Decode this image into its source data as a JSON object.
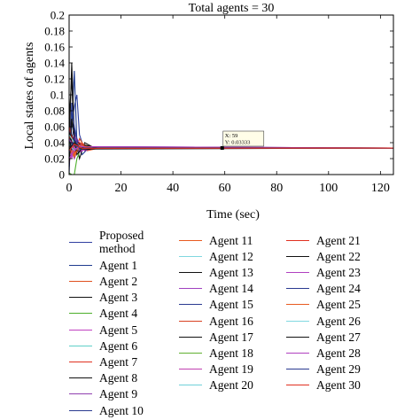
{
  "chart_data": {
    "type": "line",
    "title": "Total agents = 30",
    "xlabel": "Time (sec)",
    "ylabel": "Local states of agents",
    "xlim": [
      0,
      125
    ],
    "ylim": [
      0,
      0.2
    ],
    "xticks": [
      "0",
      "20",
      "40",
      "60",
      "80",
      "100",
      "120"
    ],
    "yticks": [
      "0",
      "0.02",
      "0.04",
      "0.06",
      "0.08",
      "0.1",
      "0.12",
      "0.14",
      "0.16",
      "0.18",
      "0.2"
    ],
    "consensus_value": 0.03333,
    "datatip": {
      "x_text": "X: 59",
      "y_text": "Y: 0.03333",
      "x": 59,
      "y": 0.03333
    },
    "legend_placement": "below plot, three columns",
    "series": [
      {
        "name": "Proposed method",
        "color": "#3040a0",
        "points": [
          [
            0,
            0.04
          ],
          [
            2,
            0.085
          ],
          [
            3,
            0.1
          ],
          [
            4,
            0.05
          ],
          [
            6,
            0.03
          ],
          [
            10,
            0.034
          ],
          [
            15,
            0.0333
          ],
          [
            125,
            0.0333
          ]
        ]
      },
      {
        "name": "Agent 1",
        "color": "#1f3b8f",
        "points": [
          [
            0,
            0.01
          ],
          [
            1,
            0.06
          ],
          [
            2,
            0.13
          ],
          [
            3,
            0.04
          ],
          [
            5,
            0.025
          ],
          [
            8,
            0.035
          ],
          [
            14,
            0.0333
          ],
          [
            125,
            0.0333
          ]
        ]
      },
      {
        "name": "Agent 2",
        "color": "#e0501e",
        "points": [
          [
            0,
            0.08
          ],
          [
            1,
            0.04
          ],
          [
            2,
            0.02
          ],
          [
            4,
            0.045
          ],
          [
            7,
            0.03
          ],
          [
            12,
            0.0335
          ],
          [
            125,
            0.0333
          ]
        ]
      },
      {
        "name": "Agent 3",
        "color": "#111111",
        "points": [
          [
            0,
            0.03
          ],
          [
            1,
            0.14
          ],
          [
            2,
            0.05
          ],
          [
            4,
            0.02
          ],
          [
            6,
            0.04
          ],
          [
            10,
            0.033
          ],
          [
            125,
            0.0333
          ]
        ]
      },
      {
        "name": "Agent 4",
        "color": "#4caf2a",
        "points": [
          [
            0,
            0.002
          ],
          [
            1,
            0.0
          ],
          [
            2,
            0.0
          ],
          [
            3,
            0.02
          ],
          [
            5,
            0.036
          ],
          [
            9,
            0.033
          ],
          [
            125,
            0.0333
          ]
        ]
      },
      {
        "name": "Agent 5",
        "color": "#c040c0",
        "points": [
          [
            0,
            0.06
          ],
          [
            1,
            0.02
          ],
          [
            3,
            0.045
          ],
          [
            6,
            0.03
          ],
          [
            10,
            0.0335
          ],
          [
            125,
            0.0333
          ]
        ]
      },
      {
        "name": "Agent 6",
        "color": "#5fd0c8",
        "points": [
          [
            0,
            0.05
          ],
          [
            2,
            0.03
          ],
          [
            4,
            0.04
          ],
          [
            8,
            0.033
          ],
          [
            125,
            0.0333
          ]
        ]
      },
      {
        "name": "Agent 7",
        "color": "#e03020",
        "points": [
          [
            0,
            0.02
          ],
          [
            2,
            0.05
          ],
          [
            4,
            0.028
          ],
          [
            7,
            0.036
          ],
          [
            12,
            0.0333
          ],
          [
            125,
            0.0333
          ]
        ]
      },
      {
        "name": "Agent 8",
        "color": "#111111",
        "points": [
          [
            0,
            0.07
          ],
          [
            1,
            0.12
          ],
          [
            2,
            0.04
          ],
          [
            4,
            0.03
          ],
          [
            7,
            0.034
          ],
          [
            125,
            0.0333
          ]
        ]
      },
      {
        "name": "Agent 9",
        "color": "#9040b0",
        "points": [
          [
            0,
            0.04
          ],
          [
            2,
            0.02
          ],
          [
            4,
            0.038
          ],
          [
            8,
            0.0332
          ],
          [
            125,
            0.0333
          ]
        ]
      },
      {
        "name": "Agent 10",
        "color": "#2a3a90",
        "points": [
          [
            0,
            0.0
          ],
          [
            1,
            0.09
          ],
          [
            3,
            0.03
          ],
          [
            5,
            0.036
          ],
          [
            10,
            0.0333
          ],
          [
            125,
            0.0333
          ]
        ]
      },
      {
        "name": "Agent 11",
        "color": "#e85a20",
        "points": [
          [
            0,
            0.045
          ],
          [
            2,
            0.025
          ],
          [
            4,
            0.04
          ],
          [
            9,
            0.0332
          ],
          [
            125,
            0.0333
          ]
        ]
      },
      {
        "name": "Agent 12",
        "color": "#80d8e0",
        "points": [
          [
            0,
            0.035
          ],
          [
            2,
            0.045
          ],
          [
            5,
            0.031
          ],
          [
            10,
            0.0334
          ],
          [
            125,
            0.0333
          ]
        ]
      },
      {
        "name": "Agent 13",
        "color": "#111111",
        "points": [
          [
            0,
            0.055
          ],
          [
            1,
            0.03
          ],
          [
            3,
            0.042
          ],
          [
            6,
            0.031
          ],
          [
            11,
            0.0334
          ],
          [
            125,
            0.0333
          ]
        ]
      },
      {
        "name": "Agent 14",
        "color": "#a040c0",
        "points": [
          [
            0,
            0.025
          ],
          [
            2,
            0.05
          ],
          [
            4,
            0.028
          ],
          [
            8,
            0.035
          ],
          [
            125,
            0.0333
          ]
        ]
      },
      {
        "name": "Agent 15",
        "color": "#2a3a90",
        "points": [
          [
            0,
            0.03
          ],
          [
            2,
            0.06
          ],
          [
            4,
            0.03
          ],
          [
            7,
            0.035
          ],
          [
            125,
            0.0333
          ]
        ]
      },
      {
        "name": "Agent 16",
        "color": "#d84020",
        "points": [
          [
            0,
            0.05
          ],
          [
            2,
            0.028
          ],
          [
            5,
            0.038
          ],
          [
            10,
            0.0332
          ],
          [
            125,
            0.0333
          ]
        ]
      },
      {
        "name": "Agent 17",
        "color": "#111111",
        "points": [
          [
            0,
            0.02
          ],
          [
            1,
            0.05
          ],
          [
            3,
            0.03
          ],
          [
            6,
            0.036
          ],
          [
            12,
            0.0333
          ],
          [
            125,
            0.0333
          ]
        ]
      },
      {
        "name": "Agent 18",
        "color": "#60b030",
        "points": [
          [
            0,
            0.04
          ],
          [
            2,
            0.035
          ],
          [
            4,
            0.031
          ],
          [
            8,
            0.034
          ],
          [
            125,
            0.0333
          ]
        ]
      },
      {
        "name": "Agent 19",
        "color": "#c040b0",
        "points": [
          [
            0,
            0.015
          ],
          [
            2,
            0.04
          ],
          [
            4,
            0.03
          ],
          [
            9,
            0.0334
          ],
          [
            125,
            0.0333
          ]
        ]
      },
      {
        "name": "Agent 20",
        "color": "#70d0d8",
        "points": [
          [
            0,
            0.038
          ],
          [
            2,
            0.03
          ],
          [
            5,
            0.036
          ],
          [
            10,
            0.0333
          ],
          [
            125,
            0.0333
          ]
        ]
      },
      {
        "name": "Agent 21",
        "color": "#e03020",
        "points": [
          [
            0,
            0.06
          ],
          [
            2,
            0.035
          ],
          [
            4,
            0.04
          ],
          [
            8,
            0.0332
          ],
          [
            125,
            0.0333
          ]
        ]
      },
      {
        "name": "Agent 22",
        "color": "#111111",
        "points": [
          [
            0,
            0.01
          ],
          [
            1,
            0.07
          ],
          [
            3,
            0.025
          ],
          [
            6,
            0.037
          ],
          [
            11,
            0.0333
          ],
          [
            125,
            0.0333
          ]
        ]
      },
      {
        "name": "Agent 23",
        "color": "#b040c0",
        "points": [
          [
            0,
            0.045
          ],
          [
            2,
            0.032
          ],
          [
            5,
            0.035
          ],
          [
            125,
            0.0333
          ]
        ]
      },
      {
        "name": "Agent 24",
        "color": "#2a3a90",
        "points": [
          [
            0,
            0.028
          ],
          [
            2,
            0.045
          ],
          [
            4,
            0.032
          ],
          [
            9,
            0.0334
          ],
          [
            125,
            0.0333
          ]
        ]
      },
      {
        "name": "Agent 25",
        "color": "#e85a20",
        "points": [
          [
            0,
            0.035
          ],
          [
            2,
            0.022
          ],
          [
            4,
            0.037
          ],
          [
            9,
            0.0332
          ],
          [
            125,
            0.0333
          ]
        ]
      },
      {
        "name": "Agent 26",
        "color": "#80d8e0",
        "points": [
          [
            0,
            0.05
          ],
          [
            2,
            0.04
          ],
          [
            5,
            0.032
          ],
          [
            10,
            0.0333
          ],
          [
            125,
            0.0333
          ]
        ]
      },
      {
        "name": "Agent 27",
        "color": "#111111",
        "points": [
          [
            0,
            0.032
          ],
          [
            2,
            0.04
          ],
          [
            5,
            0.032
          ],
          [
            125,
            0.0333
          ]
        ]
      },
      {
        "name": "Agent 28",
        "color": "#b040c0",
        "points": [
          [
            0,
            0.02
          ],
          [
            2,
            0.03
          ],
          [
            4,
            0.036
          ],
          [
            8,
            0.0333
          ],
          [
            125,
            0.0333
          ]
        ]
      },
      {
        "name": "Agent 29",
        "color": "#2a3a90",
        "points": [
          [
            0,
            0.042
          ],
          [
            2,
            0.036
          ],
          [
            5,
            0.0335
          ],
          [
            125,
            0.0333
          ]
        ]
      },
      {
        "name": "Agent 30",
        "color": "#e03020",
        "points": [
          [
            0,
            0.03
          ],
          [
            2,
            0.038
          ],
          [
            5,
            0.033
          ],
          [
            125,
            0.0333
          ]
        ]
      }
    ]
  }
}
